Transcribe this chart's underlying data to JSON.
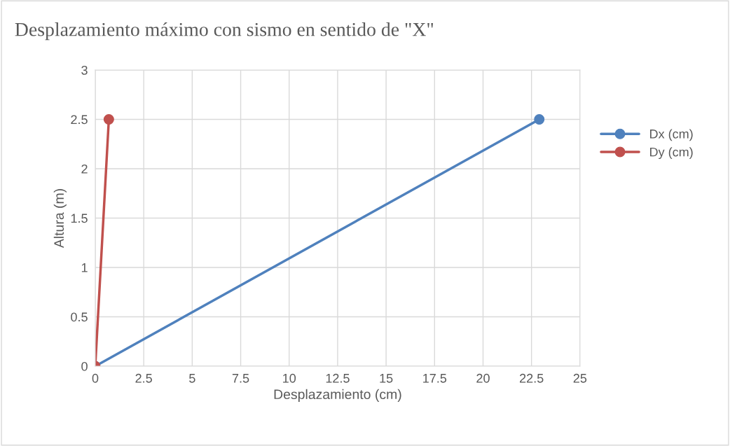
{
  "chart_data": {
    "type": "line",
    "title": "Desplazamiento máximo con sismo en sentido de \"X\"",
    "xlabel": "Desplazamiento (cm)",
    "ylabel": "Altura (m)",
    "series": [
      {
        "name": "Dx (cm)",
        "color": "#4f81bd",
        "x": [
          0,
          22.9
        ],
        "values": [
          0,
          2.5
        ]
      },
      {
        "name": "Dy (cm)",
        "color": "#c0504d",
        "x": [
          0,
          0.7
        ],
        "values": [
          0,
          2.5
        ]
      }
    ],
    "xlim": [
      0,
      25
    ],
    "xticks": [
      0,
      2.5,
      5,
      7.5,
      10,
      12.5,
      15,
      17.5,
      20,
      22.5,
      25
    ],
    "ylim": [
      0,
      3
    ],
    "yticks": [
      0,
      0.5,
      1,
      1.5,
      2,
      2.5,
      3
    ],
    "grid": true,
    "legend": "right",
    "marker": "circle",
    "line_style": "solid"
  }
}
